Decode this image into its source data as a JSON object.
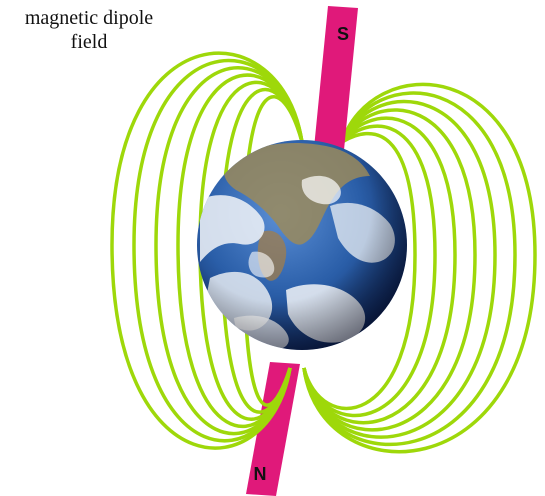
{
  "figure": {
    "label_line1": "magnetic dipole",
    "label_line2": "field",
    "south_pole_label": "S",
    "north_pole_label": "N"
  },
  "icons": {
    "earth": "earth-globe-icon",
    "magnet": "bar-magnet-icon"
  },
  "colors": {
    "field_lines": "#9ed80a",
    "magnet": "#e0197a",
    "ocean": "#2a5ea8",
    "cloud": "#f2f5f8",
    "land": "#9a8a5c"
  }
}
